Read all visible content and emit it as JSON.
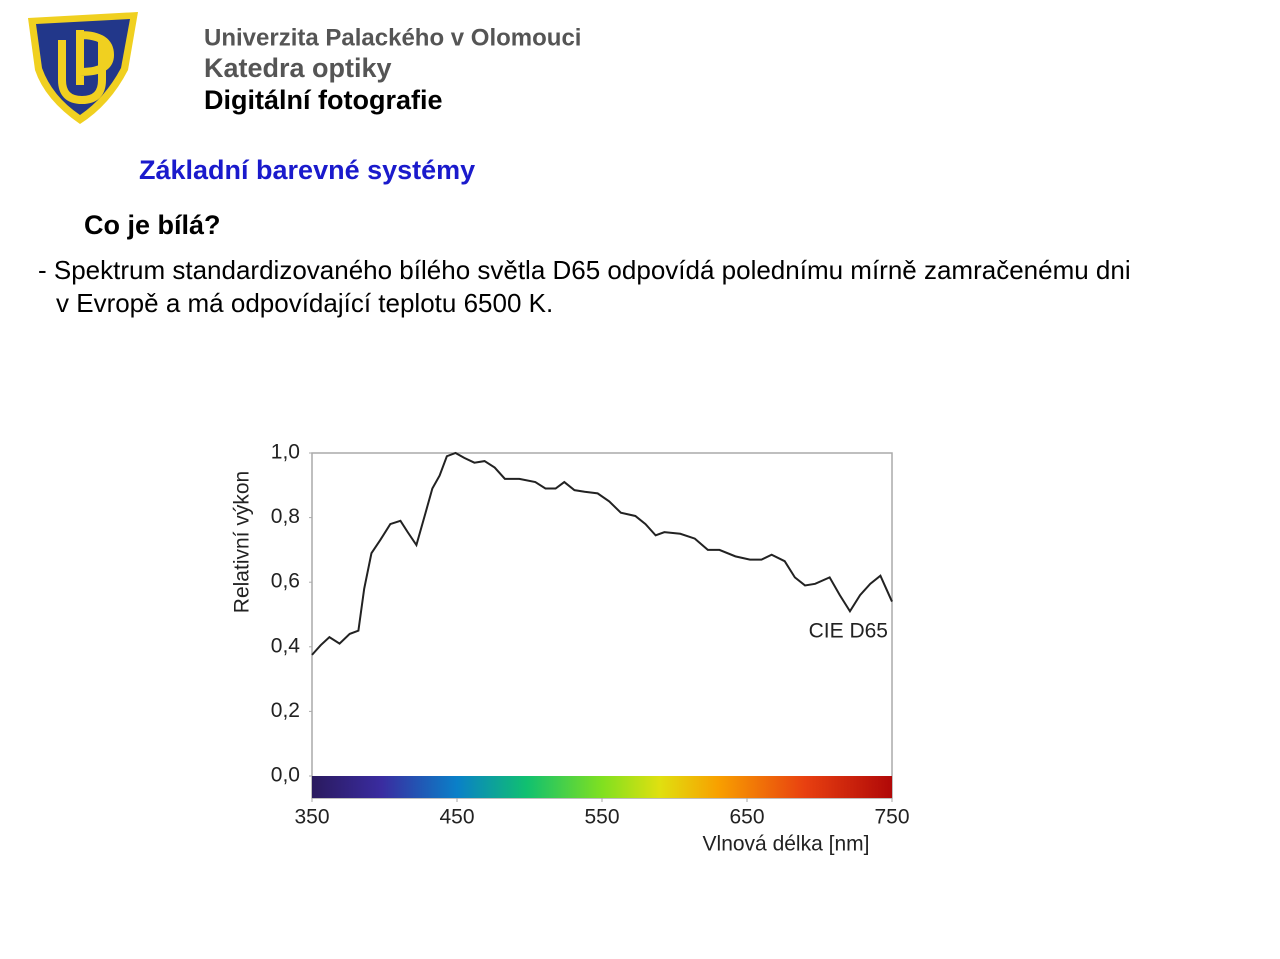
{
  "header": {
    "university": "Univerzita Palackého v Olomouci",
    "department": "Katedra optiky",
    "course": "Digitální fotografie"
  },
  "section_title": "Základní barevné systémy",
  "question": "Co je bílá?",
  "paragraph": [
    "- Spektrum standardizovaného bílého světla D65 odpovídá polednímu mírně zamračenému dni",
    "v Evropě a má odpovídající teplotu 6500 K."
  ],
  "chart_data": {
    "type": "line",
    "xlabel": "Vlnová délka [nm]",
    "ylabel": "Relativní výkon",
    "x": [
      350,
      356,
      362,
      369,
      376,
      382,
      386,
      391,
      397,
      404,
      411,
      416,
      422,
      428,
      433,
      438,
      443,
      449,
      455,
      462,
      469,
      476,
      483,
      493,
      504,
      511,
      518,
      524,
      531,
      538,
      547,
      555,
      563,
      573,
      580,
      587,
      593,
      604,
      614,
      623,
      631,
      642,
      652,
      660,
      667,
      676,
      683,
      690,
      697,
      707,
      714,
      721,
      728,
      735,
      742,
      745,
      750
    ],
    "series": [
      {
        "name": "CIE D65",
        "color": "#222222",
        "values": [
          0.375,
          0.405,
          0.43,
          0.41,
          0.44,
          0.45,
          0.58,
          0.69,
          0.73,
          0.78,
          0.79,
          0.755,
          0.715,
          0.81,
          0.89,
          0.93,
          0.99,
          1.0,
          0.985,
          0.97,
          0.975,
          0.955,
          0.92,
          0.92,
          0.91,
          0.89,
          0.89,
          0.91,
          0.885,
          0.88,
          0.875,
          0.85,
          0.815,
          0.805,
          0.78,
          0.745,
          0.755,
          0.75,
          0.735,
          0.7,
          0.7,
          0.68,
          0.67,
          0.67,
          0.685,
          0.665,
          0.615,
          0.59,
          0.595,
          0.615,
          0.56,
          0.51,
          0.56,
          0.595,
          0.62,
          0.59,
          0.54
        ]
      }
    ],
    "xlim": [
      350,
      750
    ],
    "xticks": [
      350,
      450,
      550,
      650,
      750
    ],
    "ylim": [
      0,
      1
    ],
    "yticks": [
      {
        "value": 0,
        "label": "0,0"
      },
      {
        "value": 0.2,
        "label": "0,2"
      },
      {
        "value": 0.4,
        "label": "0,4"
      },
      {
        "value": 0.6,
        "label": "0,6"
      },
      {
        "value": 0.8,
        "label": "0,8"
      },
      {
        "value": 1,
        "label": "1,0"
      }
    ]
  }
}
